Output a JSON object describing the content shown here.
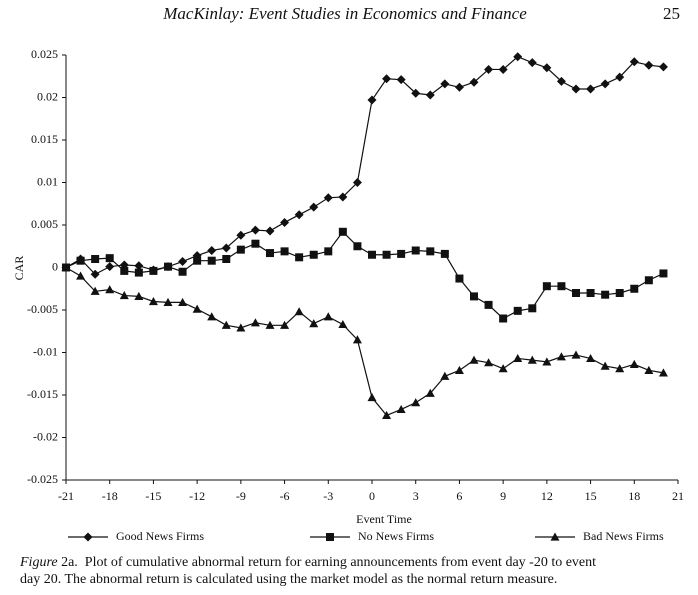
{
  "header": {
    "title": "MacKinlay: Event Studies in Economics and Finance",
    "page": "25"
  },
  "chart_data": {
    "type": "line",
    "xlabel": "Event Time",
    "ylabel": "CAR",
    "x": [
      -21,
      -20,
      -19,
      -18,
      -17,
      -16,
      -15,
      -14,
      -13,
      -12,
      -11,
      -10,
      -9,
      -8,
      -7,
      -6,
      -5,
      -4,
      -3,
      -2,
      -1,
      0,
      1,
      2,
      3,
      4,
      5,
      6,
      7,
      8,
      9,
      10,
      11,
      12,
      13,
      14,
      15,
      16,
      17,
      18,
      19,
      20
    ],
    "xlim": [
      -21,
      21
    ],
    "xticks": [
      -21,
      -18,
      -15,
      -12,
      -9,
      -6,
      -3,
      0,
      3,
      6,
      9,
      12,
      15,
      18,
      21
    ],
    "ylim": [
      -0.025,
      0.025
    ],
    "yticks": [
      0.025,
      0.02,
      0.015,
      0.01,
      0.005,
      0,
      -0.005,
      -0.01,
      -0.015,
      -0.02,
      -0.025
    ],
    "series": [
      {
        "name": "Good News Firms",
        "color": "#111111",
        "marker": "diamond",
        "values": [
          0,
          0.001,
          -0.0008,
          0.0001,
          0.0003,
          0.0002,
          -0.0003,
          0.0001,
          0.0007,
          0.0014,
          0.002,
          0.0023,
          0.0038,
          0.0044,
          0.0043,
          0.0053,
          0.0062,
          0.0071,
          0.0082,
          0.0083,
          0.01,
          0.0197,
          0.0222,
          0.0221,
          0.0205,
          0.0203,
          0.0216,
          0.0212,
          0.0218,
          0.0233,
          0.0233,
          0.0248,
          0.0241,
          0.0235,
          0.0219,
          0.021,
          0.021,
          0.0216,
          0.0224,
          0.0242,
          0.0238,
          0.0236
        ]
      },
      {
        "name": "No News Firms",
        "color": "#111111",
        "marker": "square",
        "values": [
          0,
          0.0008,
          0.001,
          0.0011,
          -0.0004,
          -0.0006,
          -0.0004,
          0.0001,
          -0.0005,
          0.0008,
          0.0008,
          0.001,
          0.0021,
          0.0028,
          0.0017,
          0.0019,
          0.0012,
          0.0015,
          0.0019,
          0.0042,
          0.0025,
          0.0015,
          0.0015,
          0.0016,
          0.002,
          0.0019,
          0.0016,
          -0.0013,
          -0.0034,
          -0.0044,
          -0.006,
          -0.0051,
          -0.0048,
          -0.0022,
          -0.0022,
          -0.003,
          -0.003,
          -0.0032,
          -0.003,
          -0.0025,
          -0.0015,
          -0.0007
        ]
      },
      {
        "name": "Bad News Firms",
        "color": "#111111",
        "marker": "triangle",
        "values": [
          0,
          -0.001,
          -0.0028,
          -0.0026,
          -0.0033,
          -0.0034,
          -0.004,
          -0.0041,
          -0.0041,
          -0.0049,
          -0.0058,
          -0.0068,
          -0.0071,
          -0.0065,
          -0.0068,
          -0.0068,
          -0.0052,
          -0.0066,
          -0.0058,
          -0.0067,
          -0.0085,
          -0.0153,
          -0.0174,
          -0.0167,
          -0.0159,
          -0.0148,
          -0.0128,
          -0.0121,
          -0.0109,
          -0.0112,
          -0.0119,
          -0.0107,
          -0.0109,
          -0.0111,
          -0.0105,
          -0.0103,
          -0.0107,
          -0.0116,
          -0.0119,
          -0.0114,
          -0.0121,
          -0.0124
        ]
      }
    ]
  },
  "caption": {
    "label": "Figure",
    "line1": " 2a.  Plot of cumulative abnormal return for earning announcements from event day -20 to event",
    "line2": "day 20. The abnormal return is calculated using the market model as the normal return measure."
  }
}
